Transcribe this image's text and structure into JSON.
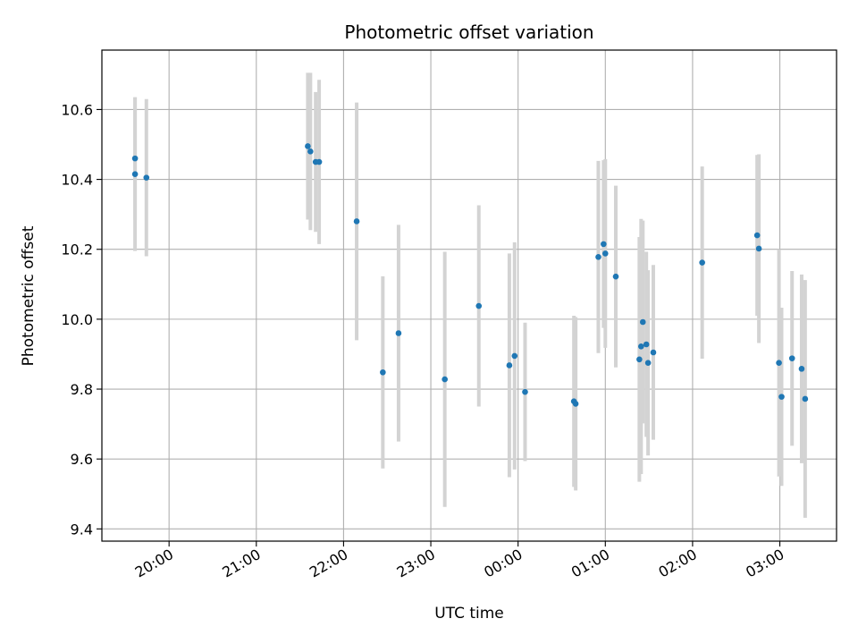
{
  "chart_data": {
    "type": "scatter",
    "title": "Photometric offset variation",
    "xlabel": "UTC time",
    "ylabel": "Photometric offset",
    "x_unit": "hours",
    "xlim": [
      19.23,
      27.65
    ],
    "ylim": [
      9.365,
      10.77
    ],
    "x_ticks": [
      {
        "value": 20,
        "label": "20:00"
      },
      {
        "value": 21,
        "label": "21:00"
      },
      {
        "value": 22,
        "label": "22:00"
      },
      {
        "value": 23,
        "label": "23:00"
      },
      {
        "value": 24,
        "label": "00:00"
      },
      {
        "value": 25,
        "label": "01:00"
      },
      {
        "value": 26,
        "label": "02:00"
      },
      {
        "value": 27,
        "label": "03:00"
      }
    ],
    "y_ticks": [
      {
        "value": 9.4,
        "label": "9.4"
      },
      {
        "value": 9.6,
        "label": "9.6"
      },
      {
        "value": 9.8,
        "label": "9.8"
      },
      {
        "value": 10.0,
        "label": "10.0"
      },
      {
        "value": 10.2,
        "label": "10.2"
      },
      {
        "value": 10.4,
        "label": "10.4"
      },
      {
        "value": 10.6,
        "label": "10.6"
      }
    ],
    "grid": true,
    "colors": {
      "point": "#1f77b4",
      "errorbar": "#d3d3d3",
      "grid": "#b0b0b0"
    },
    "points": [
      {
        "x": 19.61,
        "y": 10.415,
        "err": 0.22
      },
      {
        "x": 19.61,
        "y": 10.46,
        "err": 0.175
      },
      {
        "x": 19.74,
        "y": 10.405,
        "err": 0.225
      },
      {
        "x": 21.59,
        "y": 10.495,
        "err": 0.21
      },
      {
        "x": 21.62,
        "y": 10.48,
        "err": 0.225
      },
      {
        "x": 21.68,
        "y": 10.45,
        "err": 0.2
      },
      {
        "x": 21.72,
        "y": 10.45,
        "err": 0.235
      },
      {
        "x": 22.15,
        "y": 10.28,
        "err": 0.34
      },
      {
        "x": 22.45,
        "y": 9.848,
        "err": 0.275
      },
      {
        "x": 22.63,
        "y": 9.96,
        "err": 0.31
      },
      {
        "x": 23.16,
        "y": 9.828,
        "err": 0.365
      },
      {
        "x": 23.55,
        "y": 10.038,
        "err": 0.288
      },
      {
        "x": 23.9,
        "y": 9.868,
        "err": 0.32
      },
      {
        "x": 23.96,
        "y": 9.895,
        "err": 0.325
      },
      {
        "x": 24.08,
        "y": 9.792,
        "err": 0.198
      },
      {
        "x": 24.64,
        "y": 9.765,
        "err": 0.245
      },
      {
        "x": 24.66,
        "y": 9.758,
        "err": 0.248
      },
      {
        "x": 24.92,
        "y": 10.178,
        "err": 0.275
      },
      {
        "x": 24.98,
        "y": 10.215,
        "err": 0.24
      },
      {
        "x": 25.0,
        "y": 10.188,
        "err": 0.27
      },
      {
        "x": 25.12,
        "y": 10.122,
        "err": 0.26
      },
      {
        "x": 25.39,
        "y": 9.885,
        "err": 0.35
      },
      {
        "x": 25.41,
        "y": 9.922,
        "err": 0.365
      },
      {
        "x": 25.43,
        "y": 9.992,
        "err": 0.29
      },
      {
        "x": 25.47,
        "y": 9.928,
        "err": 0.265
      },
      {
        "x": 25.49,
        "y": 9.875,
        "err": 0.265
      },
      {
        "x": 25.55,
        "y": 9.905,
        "err": 0.25
      },
      {
        "x": 26.11,
        "y": 10.162,
        "err": 0.275
      },
      {
        "x": 26.74,
        "y": 10.24,
        "err": 0.23
      },
      {
        "x": 26.76,
        "y": 10.202,
        "err": 0.27
      },
      {
        "x": 26.99,
        "y": 9.875,
        "err": 0.325
      },
      {
        "x": 27.02,
        "y": 9.778,
        "err": 0.255
      },
      {
        "x": 27.14,
        "y": 9.888,
        "err": 0.25
      },
      {
        "x": 27.25,
        "y": 9.858,
        "err": 0.27
      },
      {
        "x": 27.29,
        "y": 9.772,
        "err": 0.34
      }
    ]
  }
}
